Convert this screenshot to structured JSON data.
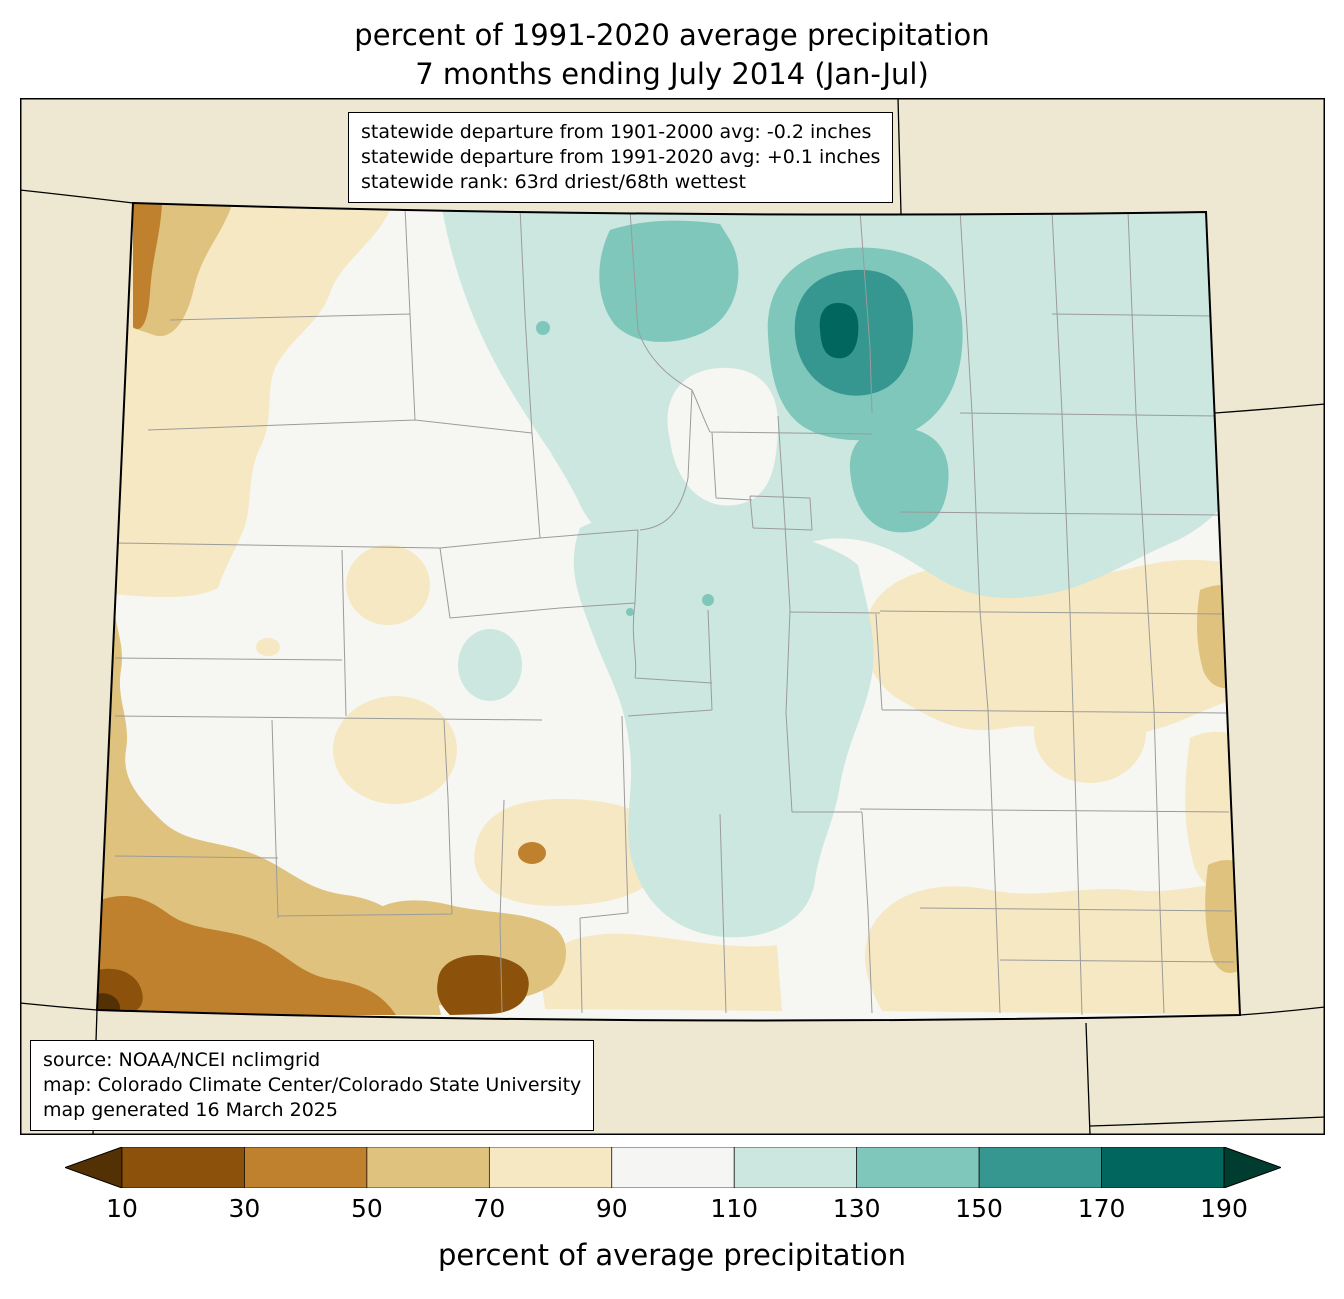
{
  "title": {
    "line1": "percent of 1991-2020 average precipitation",
    "line2": "7 months ending July 2014 (Jan-Jul)"
  },
  "stats_box": {
    "lines": [
      "statewide departure from 1901-2000 avg: -0.2 inches",
      "statewide departure from 1991-2020 avg: +0.1 inches",
      "statewide rank: 63rd driest/68th wettest"
    ]
  },
  "source_box": {
    "lines": [
      "source: NOAA/NCEI nclimgrid",
      "map: Colorado Climate Center/Colorado State University",
      "map generated 16 March 2025"
    ]
  },
  "colorbar": {
    "label": "percent of average precipitation",
    "ticks": [
      "10",
      "30",
      "50",
      "70",
      "90",
      "110",
      "130",
      "150",
      "170",
      "190"
    ],
    "colors": [
      "#543005",
      "#8c510a",
      "#bf812d",
      "#dfc27d",
      "#f6e8c3",
      "#f5f5f3",
      "#cbe7e0",
      "#7fc7ba",
      "#35978f",
      "#01665e",
      "#003c30"
    ]
  },
  "map": {
    "region": "Colorado",
    "colors": {
      "surround": "#eee8d2",
      "county_line": "#9b9b9b",
      "state_line": "#000000",
      "c_lt10": "#543005",
      "c_10_30": "#8c510a",
      "c_30_50": "#bf812d",
      "c_50_70": "#dfc27d",
      "c_70_90": "#f6e8c3",
      "c_90_110": "#f6f6f2",
      "c_110_130": "#cbe7e0",
      "c_130_150": "#7fc7ba",
      "c_150_170": "#35978f",
      "c_170_190": "#01665e",
      "c_gt190": "#003c30"
    }
  }
}
